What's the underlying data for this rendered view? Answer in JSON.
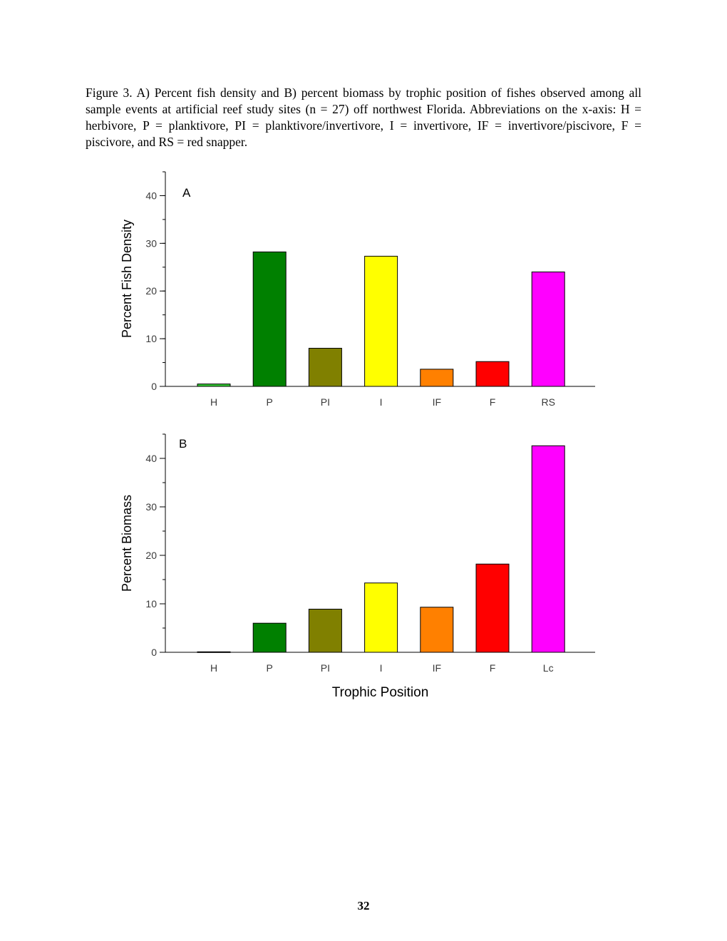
{
  "caption": "Figure 3.  A) Percent fish density and B) percent biomass by trophic position of fishes observed among all sample events at artificial reef study sites (n = 27) off northwest Florida. Abbreviations on the x-axis: H = herbivore, P = planktivore, PI = planktivore/invertivore, I = invertivore, IF = invertivore/piscivore, F = piscivore, and RS = red snapper.",
  "page_number": "32",
  "chart_data": [
    {
      "type": "bar",
      "panel_label": "A",
      "ylabel": "Percent Fish Density",
      "xlabel": "",
      "categories": [
        "H",
        "P",
        "PI",
        "I",
        "IF",
        "F",
        "RS"
      ],
      "values": [
        0.5,
        28.2,
        8.0,
        27.3,
        3.6,
        5.2,
        24.0
      ],
      "colors": [
        "#33cc33",
        "#008000",
        "#808000",
        "#ffff00",
        "#ff8000",
        "#ff0000",
        "#ff00ff"
      ],
      "ylim": [
        0,
        45
      ],
      "yticks": [
        0,
        10,
        20,
        30,
        40
      ],
      "grid": false
    },
    {
      "type": "bar",
      "panel_label": "B",
      "ylabel": "Percent Biomass",
      "xlabel": "Trophic Position",
      "categories": [
        "H",
        "P",
        "PI",
        "I",
        "IF",
        "F",
        "Lc"
      ],
      "values": [
        0.1,
        6.0,
        8.9,
        14.3,
        9.3,
        18.2,
        42.6
      ],
      "colors": [
        "#33cc33",
        "#008000",
        "#808000",
        "#ffff00",
        "#ff8000",
        "#ff0000",
        "#ff00ff"
      ],
      "ylim": [
        0,
        45
      ],
      "yticks": [
        0,
        10,
        20,
        30,
        40
      ],
      "grid": false
    }
  ]
}
